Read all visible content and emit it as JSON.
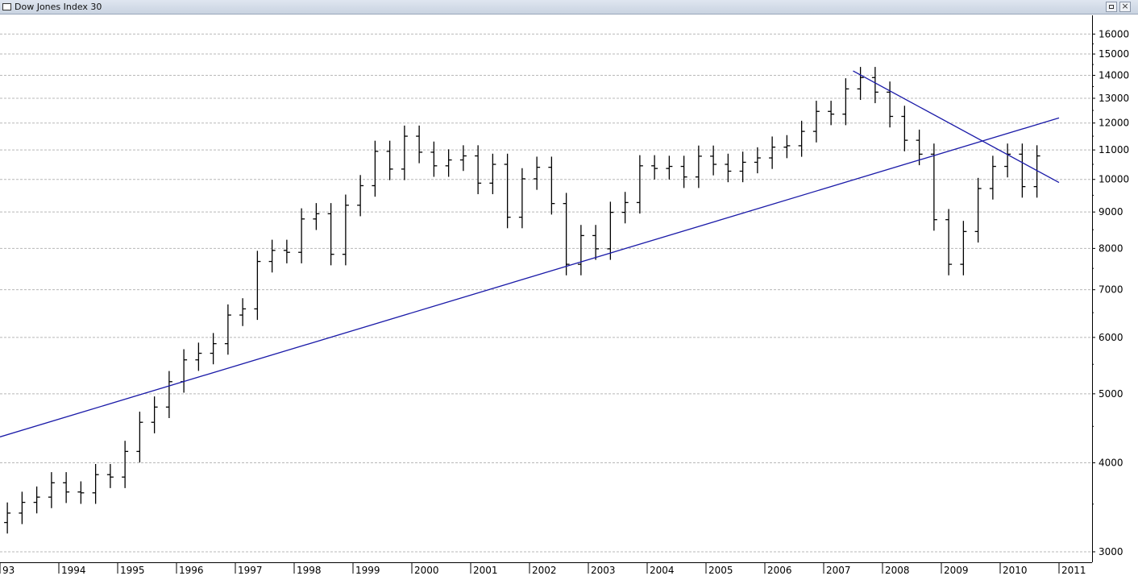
{
  "window": {
    "title": "Dow Jones Index 30"
  },
  "chart_data": {
    "type": "bar",
    "subtype": "ohlc-quarterly",
    "title": "Dow Jones Index 30",
    "scale": "log",
    "ylim": [
      2900,
      17000
    ],
    "y_ticks": [
      3000,
      4000,
      5000,
      6000,
      7000,
      8000,
      9000,
      10000,
      11000,
      12000,
      13000,
      14000,
      15000,
      16000
    ],
    "x_ticks": [
      "93",
      "1994",
      "1995",
      "1996",
      "1997",
      "1998",
      "1999",
      "2000",
      "2001",
      "2002",
      "2003",
      "2004",
      "2005",
      "2006",
      "2007",
      "2008",
      "2009",
      "2010",
      "2011"
    ],
    "grid": true,
    "colors": {
      "bars": "#000000",
      "trendlines": "#1a1aa8",
      "grid": "#b8b8b8"
    },
    "quarters": [
      "1993Q1",
      "1993Q2",
      "1993Q3",
      "1993Q4",
      "1994Q1",
      "1994Q2",
      "1994Q3",
      "1994Q4",
      "1995Q1",
      "1995Q2",
      "1995Q3",
      "1995Q4",
      "1996Q1",
      "1996Q2",
      "1996Q3",
      "1996Q4",
      "1997Q1",
      "1997Q2",
      "1997Q3",
      "1997Q4",
      "1998Q1",
      "1998Q2",
      "1998Q3",
      "1998Q4",
      "1999Q1",
      "1999Q2",
      "1999Q3",
      "1999Q4",
      "2000Q1",
      "2000Q2",
      "2000Q3",
      "2000Q4",
      "2001Q1",
      "2001Q2",
      "2001Q3",
      "2001Q4",
      "2002Q1",
      "2002Q2",
      "2002Q3",
      "2002Q4",
      "2003Q1",
      "2003Q2",
      "2003Q3",
      "2003Q4",
      "2004Q1",
      "2004Q2",
      "2004Q3",
      "2004Q4",
      "2005Q1",
      "2005Q2",
      "2005Q3",
      "2005Q4",
      "2006Q1",
      "2006Q2",
      "2006Q3",
      "2006Q4",
      "2007Q1",
      "2007Q2",
      "2007Q3",
      "2007Q4",
      "2008Q1",
      "2008Q2",
      "2008Q3",
      "2008Q4",
      "2009Q1",
      "2009Q2",
      "2009Q3",
      "2009Q4",
      "2010Q1",
      "2010Q2",
      "2010Q3"
    ],
    "closes": [
      3400,
      3520,
      3580,
      3750,
      3640,
      3630,
      3850,
      3820,
      4150,
      4560,
      4790,
      5200,
      5580,
      5700,
      5880,
      6450,
      6580,
      7670,
      7950,
      7900,
      8800,
      8950,
      7850,
      9200,
      9800,
      10950,
      10340,
      11500,
      10920,
      10450,
      10650,
      10790,
      9880,
      10500,
      8850,
      10020,
      10400,
      9250,
      7600,
      8340,
      7990,
      8990,
      9280,
      10450,
      10360,
      10430,
      10080,
      10780,
      10500,
      10270,
      10570,
      10720,
      11100,
      11150,
      11680,
      12460,
      12350,
      13400,
      13900,
      13260,
      12260,
      11350,
      10850,
      8780,
      7600,
      8450,
      9710,
      10430,
      10850,
      9770,
      10790
    ],
    "trendlines": [
      {
        "from": [
          "1993Q1",
          4350
        ],
        "to": [
          "2011Q1",
          12200
        ]
      },
      {
        "from": [
          "2007Q3",
          14200
        ],
        "to": [
          "2011Q1",
          9900
        ]
      }
    ]
  }
}
